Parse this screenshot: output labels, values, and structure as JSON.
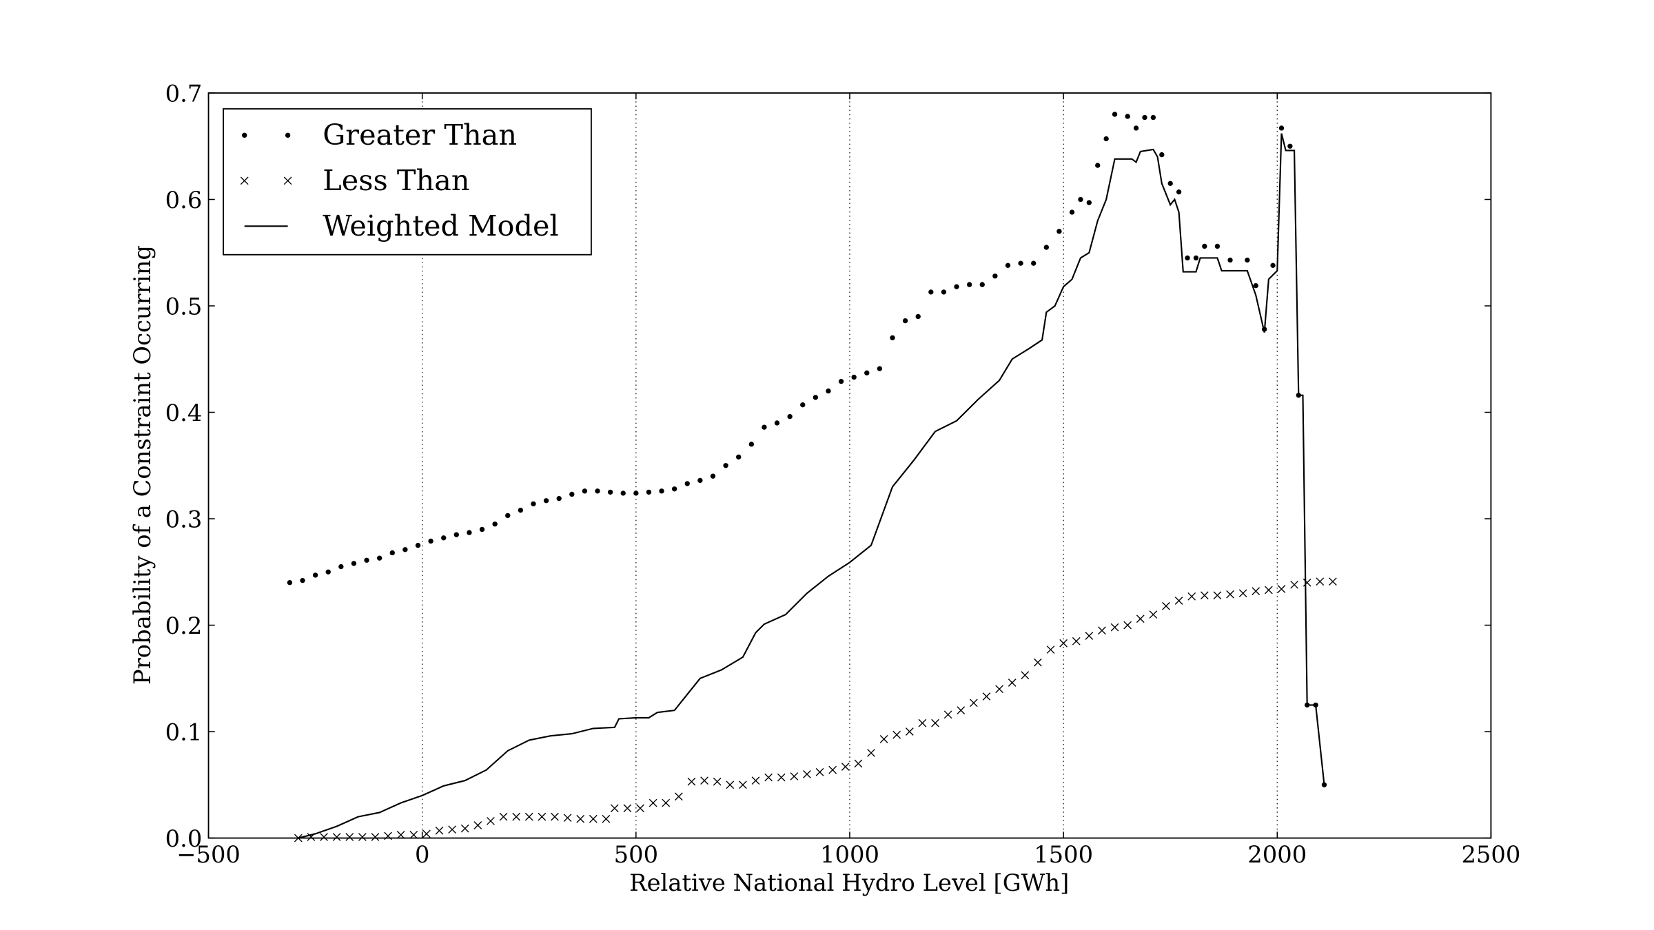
{
  "chart_data": {
    "type": "line",
    "x_label": "Relative National Hydro Level [GWh]",
    "y_label": "Probability of a Constraint Occurring",
    "xlim": [
      -500,
      2500
    ],
    "ylim": [
      0,
      0.7
    ],
    "xticks": [
      {
        "value": -500,
        "label": "−500"
      },
      0,
      500,
      1000,
      1500,
      2000,
      2500
    ],
    "yticks": [
      {
        "value": 0,
        "label": "0.0"
      },
      0.1,
      0.2,
      0.3,
      0.4,
      0.5,
      0.6,
      0.7
    ],
    "grid": "x",
    "legend": "upper left",
    "series": [
      {
        "name": "Greater Than",
        "color": "#000000",
        "marker": "dot",
        "x": [
          -310,
          -280,
          -250,
          -220,
          -190,
          -160,
          -130,
          -100,
          -70,
          -40,
          -10,
          20,
          50,
          80,
          110,
          140,
          170,
          200,
          230,
          260,
          290,
          320,
          350,
          380,
          410,
          440,
          470,
          500,
          530,
          560,
          590,
          620,
          650,
          680,
          710,
          740,
          770,
          800,
          830,
          860,
          890,
          920,
          950,
          980,
          1010,
          1040,
          1070,
          1100,
          1130,
          1160,
          1190,
          1220,
          1250,
          1280,
          1310,
          1340,
          1370,
          1400,
          1430,
          1460,
          1490,
          1520,
          1540,
          1560,
          1580,
          1600,
          1620,
          1650,
          1670,
          1690,
          1710,
          1730,
          1750,
          1770,
          1790,
          1810,
          1830,
          1860,
          1890,
          1930,
          1950,
          1970,
          1990,
          2010,
          2030,
          2050,
          2070,
          2090,
          2110
        ],
        "values": [
          0.24,
          0.242,
          0.247,
          0.25,
          0.255,
          0.258,
          0.261,
          0.263,
          0.268,
          0.271,
          0.275,
          0.279,
          0.282,
          0.285,
          0.287,
          0.29,
          0.295,
          0.303,
          0.308,
          0.314,
          0.317,
          0.319,
          0.323,
          0.326,
          0.326,
          0.325,
          0.324,
          0.324,
          0.325,
          0.326,
          0.328,
          0.333,
          0.336,
          0.34,
          0.35,
          0.358,
          0.37,
          0.386,
          0.39,
          0.396,
          0.407,
          0.414,
          0.42,
          0.429,
          0.433,
          0.437,
          0.441,
          0.47,
          0.486,
          0.49,
          0.513,
          0.513,
          0.518,
          0.52,
          0.52,
          0.528,
          0.538,
          0.54,
          0.54,
          0.555,
          0.57,
          0.588,
          0.6,
          0.597,
          0.632,
          0.657,
          0.68,
          0.678,
          0.667,
          0.677,
          0.677,
          0.642,
          0.615,
          0.607,
          0.545,
          0.545,
          0.556,
          0.556,
          0.543,
          0.543,
          0.519,
          0.478,
          0.538,
          0.667,
          0.65,
          0.416,
          0.125,
          0.125,
          0.05
        ]
      },
      {
        "name": "Less Than",
        "color": "#000000",
        "marker": "cross",
        "x": [
          -290,
          -260,
          -230,
          -200,
          -170,
          -140,
          -110,
          -80,
          -50,
          -20,
          10,
          40,
          70,
          100,
          130,
          160,
          190,
          220,
          250,
          280,
          310,
          340,
          370,
          400,
          430,
          450,
          480,
          510,
          540,
          570,
          600,
          630,
          660,
          690,
          720,
          750,
          780,
          810,
          840,
          870,
          900,
          930,
          960,
          990,
          1020,
          1050,
          1080,
          1110,
          1140,
          1170,
          1200,
          1230,
          1260,
          1290,
          1320,
          1350,
          1380,
          1410,
          1440,
          1470,
          1500,
          1530,
          1560,
          1590,
          1620,
          1650,
          1680,
          1710,
          1740,
          1770,
          1800,
          1830,
          1860,
          1890,
          1920,
          1950,
          1980,
          2010,
          2040,
          2070,
          2100,
          2130
        ],
        "values": [
          0,
          0.001,
          0.001,
          0.001,
          0.001,
          0.001,
          0.001,
          0.002,
          0.003,
          0.003,
          0.004,
          0.007,
          0.008,
          0.009,
          0.012,
          0.016,
          0.02,
          0.02,
          0.02,
          0.02,
          0.02,
          0.019,
          0.018,
          0.018,
          0.018,
          0.028,
          0.028,
          0.028,
          0.033,
          0.033,
          0.039,
          0.053,
          0.054,
          0.053,
          0.05,
          0.05,
          0.054,
          0.057,
          0.057,
          0.058,
          0.06,
          0.062,
          0.064,
          0.067,
          0.07,
          0.08,
          0.093,
          0.097,
          0.1,
          0.108,
          0.108,
          0.116,
          0.12,
          0.127,
          0.133,
          0.14,
          0.146,
          0.153,
          0.165,
          0.177,
          0.183,
          0.185,
          0.19,
          0.195,
          0.198,
          0.2,
          0.206,
          0.21,
          0.218,
          0.223,
          0.227,
          0.228,
          0.228,
          0.229,
          0.23,
          0.232,
          0.233,
          0.234,
          0.238,
          0.24,
          0.241,
          0.241
        ]
      },
      {
        "name": "Weighted Model",
        "color": "#000000",
        "marker": "none",
        "x": [
          -290,
          -250,
          -200,
          -150,
          -100,
          -50,
          0,
          50,
          100,
          150,
          200,
          250,
          300,
          350,
          400,
          450,
          460,
          500,
          530,
          550,
          590,
          620,
          650,
          700,
          750,
          780,
          800,
          850,
          900,
          950,
          1000,
          1050,
          1100,
          1150,
          1200,
          1250,
          1300,
          1350,
          1380,
          1420,
          1450,
          1460,
          1480,
          1500,
          1520,
          1540,
          1560,
          1580,
          1600,
          1620,
          1660,
          1670,
          1680,
          1710,
          1720,
          1730,
          1750,
          1760,
          1770,
          1780,
          1810,
          1820,
          1860,
          1870,
          1930,
          1950,
          1970,
          1980,
          2000,
          2010,
          2020,
          2040,
          2050,
          2060,
          2070,
          2090,
          2110
        ],
        "values": [
          0,
          0.004,
          0.011,
          0.02,
          0.024,
          0.033,
          0.04,
          0.049,
          0.054,
          0.064,
          0.082,
          0.092,
          0.096,
          0.098,
          0.103,
          0.104,
          0.112,
          0.113,
          0.113,
          0.118,
          0.12,
          0.135,
          0.15,
          0.158,
          0.17,
          0.193,
          0.201,
          0.21,
          0.23,
          0.246,
          0.259,
          0.275,
          0.33,
          0.355,
          0.382,
          0.392,
          0.412,
          0.43,
          0.45,
          0.46,
          0.468,
          0.494,
          0.5,
          0.518,
          0.525,
          0.545,
          0.55,
          0.58,
          0.6,
          0.638,
          0.638,
          0.635,
          0.645,
          0.647,
          0.64,
          0.615,
          0.595,
          0.6,
          0.588,
          0.532,
          0.532,
          0.545,
          0.545,
          0.533,
          0.533,
          0.51,
          0.475,
          0.525,
          0.533,
          0.662,
          0.646,
          0.646,
          0.416,
          0.416,
          0.125,
          0.125,
          0.05
        ]
      }
    ]
  }
}
